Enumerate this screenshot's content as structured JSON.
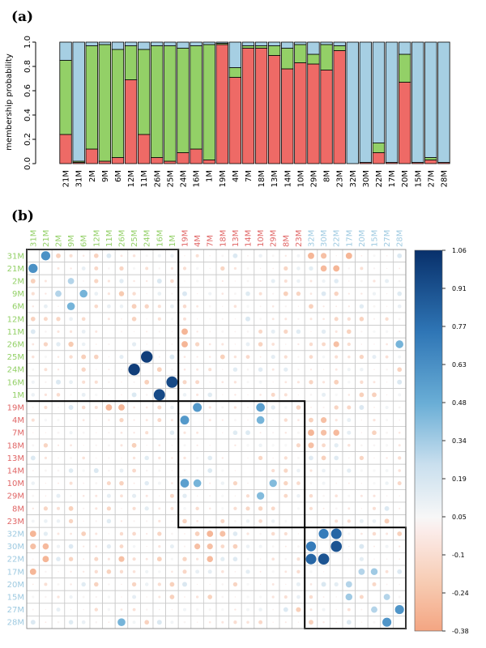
{
  "chart_data": [
    {
      "type": "bar",
      "panel_label": "(a)",
      "ylabel": "membership probability",
      "ylim": [
        0,
        1
      ],
      "yticks": [
        "0.0",
        "0.2",
        "0.4",
        "0.6",
        "0.8",
        "1.0"
      ],
      "categories": [
        "21M",
        "31M",
        "2M",
        "9M",
        "6M",
        "12M",
        "11M",
        "26M",
        "25M",
        "24M",
        "16M",
        "1M",
        "19M",
        "4M",
        "7M",
        "18M",
        "13M",
        "14M",
        "10M",
        "29M",
        "8M",
        "23M",
        "32M",
        "30M",
        "22M",
        "17M",
        "20M",
        "15M",
        "27M",
        "28M"
      ],
      "series": [
        {
          "color": "#ee6a66",
          "values": [
            0.24,
            0.01,
            0.12,
            0.02,
            0.05,
            0.69,
            0.24,
            0.05,
            0.02,
            0.09,
            0.12,
            0.03,
            0.98,
            0.71,
            0.95,
            0.95,
            0.89,
            0.78,
            0.83,
            0.82,
            0.77,
            0.93,
            0.0,
            0.01,
            0.09,
            0.01,
            0.67,
            0.01,
            0.03,
            0.01
          ]
        },
        {
          "color": "#93d067",
          "values": [
            0.61,
            0.01,
            0.85,
            0.96,
            0.89,
            0.28,
            0.7,
            0.92,
            0.95,
            0.86,
            0.85,
            0.95,
            0.01,
            0.08,
            0.02,
            0.02,
            0.08,
            0.17,
            0.15,
            0.08,
            0.21,
            0.04,
            0.0,
            0.0,
            0.08,
            0.0,
            0.23,
            0.0,
            0.02,
            0.0
          ]
        },
        {
          "color": "#a6cfe3",
          "values": [
            0.15,
            0.98,
            0.03,
            0.02,
            0.06,
            0.03,
            0.06,
            0.03,
            0.03,
            0.05,
            0.03,
            0.02,
            0.01,
            0.21,
            0.03,
            0.03,
            0.03,
            0.05,
            0.02,
            0.1,
            0.02,
            0.03,
            1.0,
            0.99,
            0.83,
            0.99,
            0.1,
            0.99,
            0.95,
            0.99
          ]
        }
      ]
    },
    {
      "type": "heatmap",
      "panel_label": "(b)",
      "labels": [
        "31M",
        "21M",
        "2M",
        "9M",
        "6M",
        "12M",
        "11M",
        "26M",
        "25M",
        "24M",
        "16M",
        "1M",
        "19M",
        "4M",
        "7M",
        "18M",
        "13M",
        "14M",
        "10M",
        "29M",
        "8M",
        "23M",
        "32M",
        "30M",
        "22M",
        "17M",
        "20M",
        "15M",
        "27M",
        "28M"
      ],
      "label_colors": [
        "#93d067",
        "#93d067",
        "#93d067",
        "#93d067",
        "#93d067",
        "#93d067",
        "#93d067",
        "#93d067",
        "#93d067",
        "#93d067",
        "#93d067",
        "#93d067",
        "#e06666",
        "#e06666",
        "#e06666",
        "#e06666",
        "#e06666",
        "#e06666",
        "#e06666",
        "#e06666",
        "#e06666",
        "#e06666",
        "#9ecae1",
        "#9ecae1",
        "#9ecae1",
        "#9ecae1",
        "#9ecae1",
        "#9ecae1",
        "#9ecae1",
        "#9ecae1"
      ],
      "clusters": [
        [
          0,
          11
        ],
        [
          12,
          21
        ],
        [
          22,
          29
        ]
      ],
      "colorbar_range": [
        -0.38,
        1.06
      ],
      "colorbar_ticks": [
        "1.06",
        "0.91",
        "0.77",
        "0.63",
        "0.48",
        "0.34",
        "0.19",
        "0.05",
        "-0.1",
        "-0.24",
        "-0.38"
      ],
      "strong_pairs": [
        {
          "a": "25M",
          "b": "24M",
          "value": 1.0
        },
        {
          "a": "16M",
          "b": "1M",
          "value": 0.95
        },
        {
          "a": "30M",
          "b": "22M",
          "value": 0.9
        },
        {
          "a": "32M",
          "b": "22M",
          "value": 0.82
        },
        {
          "a": "32M",
          "b": "30M",
          "value": 0.72
        },
        {
          "a": "31M",
          "b": "21M",
          "value": 0.62
        },
        {
          "a": "27M",
          "b": "28M",
          "value": 0.6
        },
        {
          "a": "19M",
          "b": "4M",
          "value": 0.58
        },
        {
          "a": "19M",
          "b": "10M",
          "value": 0.55
        },
        {
          "a": "9M",
          "b": "6M",
          "value": 0.45
        },
        {
          "a": "26M",
          "b": "28M",
          "value": 0.45
        },
        {
          "a": "4M",
          "b": "10M",
          "value": 0.45
        },
        {
          "a": "10M",
          "b": "29M",
          "value": 0.42
        },
        {
          "a": "2M",
          "b": "9M",
          "value": 0.3
        },
        {
          "a": "17M",
          "b": "15M",
          "value": 0.35
        },
        {
          "a": "20M",
          "b": "17M",
          "value": 0.3
        },
        {
          "a": "27M",
          "b": "15M",
          "value": 0.3
        },
        {
          "a": "31M",
          "b": "32M",
          "value": -0.3
        },
        {
          "a": "31M",
          "b": "30M",
          "value": -0.25
        },
        {
          "a": "31M",
          "b": "17M",
          "value": -0.3
        },
        {
          "a": "32M",
          "b": "31M",
          "value": -0.3
        },
        {
          "a": "22M",
          "b": "21M",
          "value": -0.3
        },
        {
          "a": "30M",
          "b": "21M",
          "value": -0.28
        },
        {
          "a": "22M",
          "b": "26M",
          "value": -0.25
        },
        {
          "a": "7M",
          "b": "32M",
          "value": -0.3
        },
        {
          "a": "7M",
          "b": "30M",
          "value": -0.25
        },
        {
          "a": "19M",
          "b": "11M",
          "value": -0.3
        },
        {
          "a": "19M",
          "b": "26M",
          "value": -0.3
        },
        {
          "a": "11M",
          "b": "19M",
          "value": -0.3
        },
        {
          "a": "22M",
          "b": "7M",
          "value": -0.28
        },
        {
          "a": "32M",
          "b": "18M",
          "value": -0.25
        },
        {
          "a": "30M",
          "b": "4M",
          "value": -0.25
        },
        {
          "a": "26M",
          "b": "9M",
          "value": -0.2
        }
      ]
    }
  ]
}
